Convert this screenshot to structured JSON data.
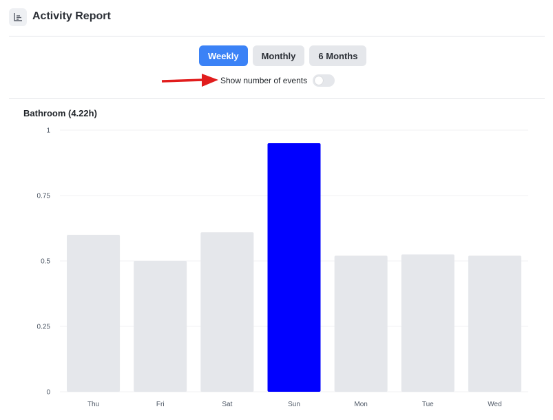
{
  "header": {
    "title": "Activity Report",
    "icon": "chart-icon"
  },
  "tabs": [
    {
      "label": "Weekly",
      "active": true
    },
    {
      "label": "Monthly",
      "active": false
    },
    {
      "label": "6 Months",
      "active": false
    }
  ],
  "toggle": {
    "label": "Show number of events",
    "on": false
  },
  "colors": {
    "accent": "#3b82f6",
    "highlight_bar": "#0000ff",
    "bar": "#e5e7eb",
    "annotation_arrow": "#e11d1d"
  },
  "chart_data": {
    "type": "bar",
    "title": "Bathroom (4.22h)",
    "categories": [
      "Thu",
      "Fri",
      "Sat",
      "Sun",
      "Mon",
      "Tue",
      "Wed"
    ],
    "values": [
      0.6,
      0.5,
      0.61,
      0.95,
      0.52,
      0.525,
      0.52
    ],
    "highlight_index": 3,
    "ylim": [
      0,
      1
    ],
    "yticks": [
      "0",
      "0.25",
      "0.5",
      "0.75",
      "1"
    ],
    "ytick_values": [
      0,
      0.25,
      0.5,
      0.75,
      1
    ],
    "grid": true,
    "xlabel": "",
    "ylabel": ""
  }
}
